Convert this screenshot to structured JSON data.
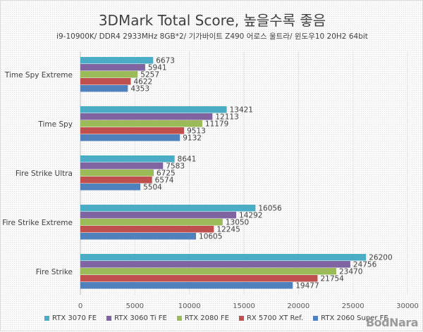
{
  "chart_data": {
    "type": "bar",
    "orientation": "horizontal",
    "title": "3DMark Total Score, 높을수록 좋음",
    "subtitle": "i9-10900K/ DDR4 2933MHz 8GB*2/ 기가바이트 Z490 어로스 울트라/ 윈도우10 20H2 64bit",
    "categories": [
      "Time Spy Extreme",
      "Time Spy",
      "Fire Strike Ultra",
      "Fire Strike Extreme",
      "Fire Strike"
    ],
    "series": [
      {
        "name": "RTX 3070 FE",
        "color": "#4bacc6",
        "values": [
          6673,
          13421,
          8641,
          16056,
          26200
        ]
      },
      {
        "name": "RTX 3060 Ti FE",
        "color": "#8064a2",
        "values": [
          5941,
          12113,
          7583,
          14292,
          24756
        ]
      },
      {
        "name": "RTX 2080 FE",
        "color": "#9bbb59",
        "values": [
          5257,
          11179,
          6725,
          13050,
          23470
        ]
      },
      {
        "name": "RX 5700 XT Ref.",
        "color": "#c0504d",
        "values": [
          4622,
          9513,
          6574,
          12245,
          21754
        ]
      },
      {
        "name": "RTX 2060 Super FE",
        "color": "#4f81bd",
        "values": [
          4353,
          9132,
          5504,
          10605,
          19477
        ]
      }
    ],
    "xlim": [
      0,
      30000
    ],
    "xticks": [
      0,
      5000,
      10000,
      15000,
      20000,
      25000,
      30000
    ],
    "grid": true,
    "legend": "bottom",
    "data_labels": true
  },
  "watermark": "BodNara"
}
